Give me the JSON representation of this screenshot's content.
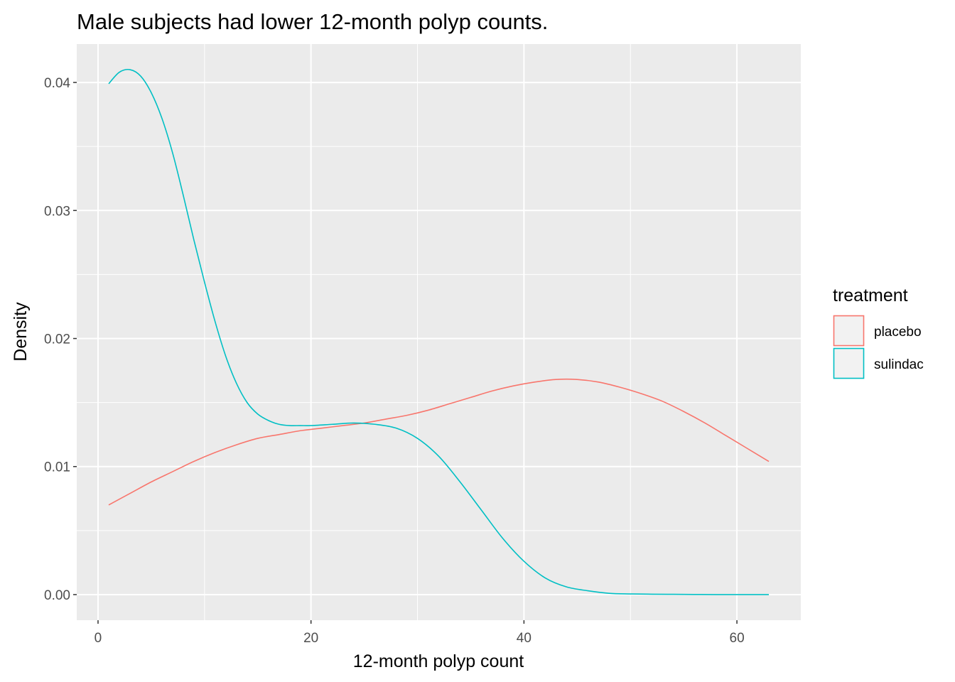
{
  "chart_data": {
    "type": "line",
    "title": "Male subjects had lower 12-month polyp counts.",
    "xlabel": "12-month polyp count",
    "ylabel": "Density",
    "xlim": [
      -2,
      66
    ],
    "ylim": [
      -0.002,
      0.043
    ],
    "x_ticks": [
      0,
      20,
      40,
      60
    ],
    "x_tick_labels": [
      "0",
      "20",
      "40",
      "60"
    ],
    "y_ticks": [
      0.0,
      0.01,
      0.02,
      0.03,
      0.04
    ],
    "y_tick_labels": [
      "0.00",
      "0.01",
      "0.02",
      "0.03",
      "0.04"
    ],
    "grid": true,
    "legend": {
      "title": "treatment",
      "position": "right"
    },
    "series": [
      {
        "name": "placebo",
        "color": "#F8766D",
        "x": [
          1,
          3,
          5,
          7,
          9,
          11,
          13,
          15,
          17,
          19,
          21,
          23,
          25,
          27,
          29,
          31,
          33,
          35,
          37,
          39,
          41,
          43,
          45,
          47,
          49,
          51,
          53,
          55,
          57,
          59,
          61,
          63
        ],
        "y": [
          0.007,
          0.0079,
          0.0088,
          0.0096,
          0.0104,
          0.0111,
          0.0117,
          0.0122,
          0.0125,
          0.0128,
          0.013,
          0.0132,
          0.0134,
          0.0137,
          0.014,
          0.0144,
          0.0149,
          0.0154,
          0.0159,
          0.0163,
          0.0166,
          0.0168,
          0.0168,
          0.0166,
          0.0162,
          0.0157,
          0.0151,
          0.0143,
          0.0134,
          0.0124,
          0.0114,
          0.0104
        ]
      },
      {
        "name": "sulindac",
        "color": "#00BFC4",
        "x": [
          1,
          2,
          3,
          4,
          5,
          6,
          7,
          8,
          9,
          10,
          11,
          12,
          13,
          14,
          15,
          16,
          17,
          18,
          19,
          20,
          22,
          24,
          26,
          28,
          30,
          32,
          34,
          36,
          38,
          40,
          42,
          44,
          46,
          48,
          50,
          52,
          54,
          56,
          58,
          60,
          63
        ],
        "y": [
          0.0399,
          0.0408,
          0.041,
          0.0405,
          0.0392,
          0.0372,
          0.0345,
          0.0312,
          0.0277,
          0.0244,
          0.0213,
          0.0186,
          0.0165,
          0.015,
          0.0141,
          0.0136,
          0.0133,
          0.0132,
          0.0132,
          0.0132,
          0.0133,
          0.0134,
          0.0133,
          0.013,
          0.0122,
          0.0108,
          0.0088,
          0.0066,
          0.0044,
          0.0026,
          0.0013,
          0.0006,
          0.0003,
          0.0001,
          5e-05,
          3e-05,
          2e-05,
          1e-05,
          0.0,
          0.0,
          0.0
        ]
      }
    ]
  }
}
